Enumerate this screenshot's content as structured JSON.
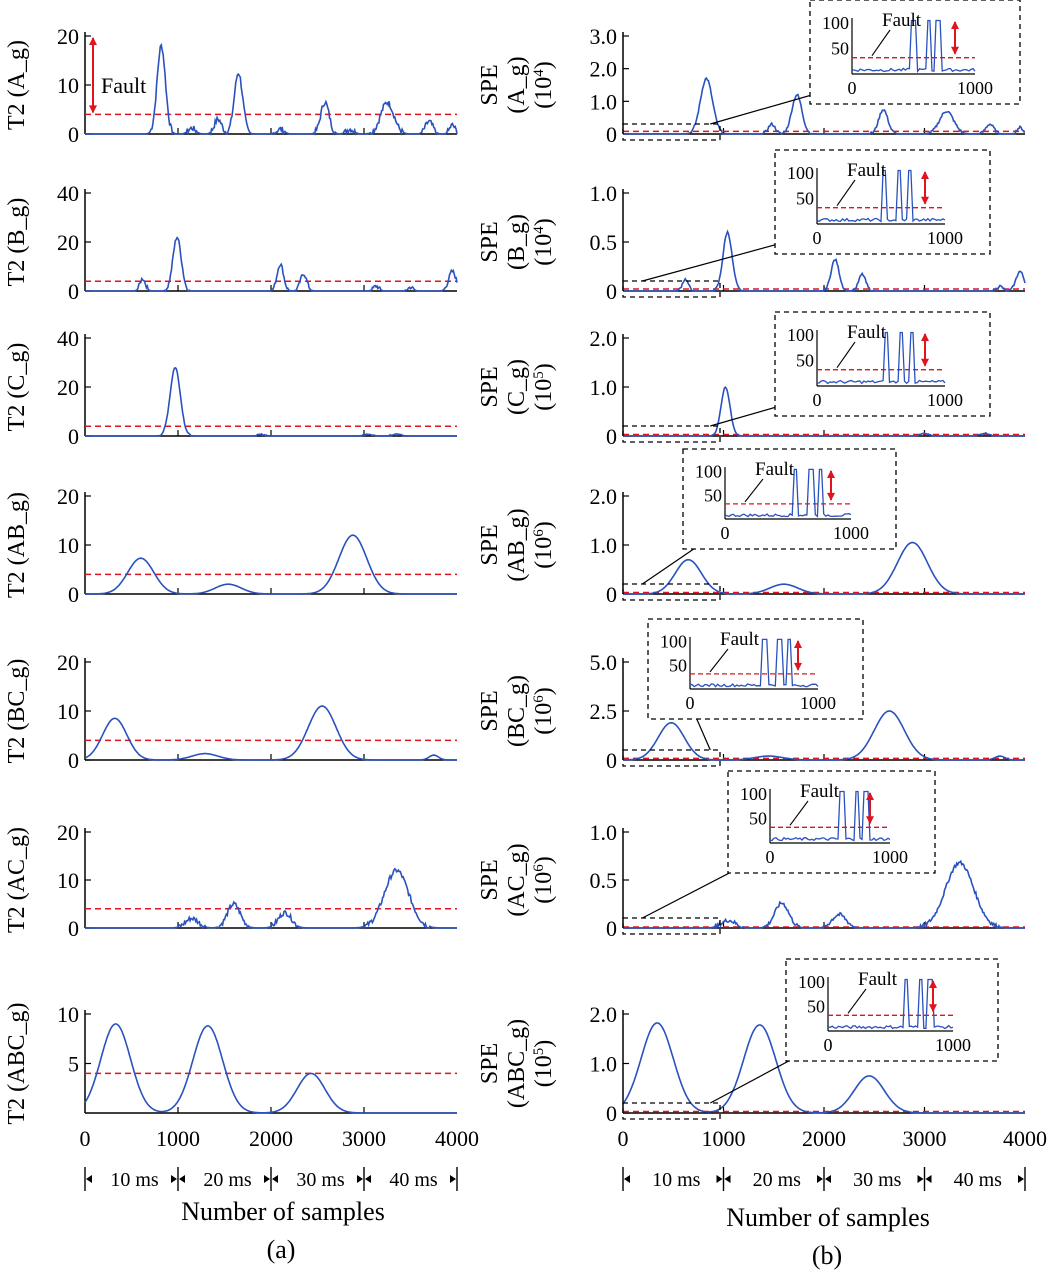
{
  "colors": {
    "signal": "#2a52be",
    "threshold": "#e0141e",
    "axis": "#000000",
    "arrow": "#e0141e"
  },
  "panel_captions": [
    "(a)",
    "(b)"
  ],
  "x_axis": {
    "title": "Number of samples",
    "ticks": [
      "0",
      "1000",
      "2000",
      "3000",
      "4000"
    ],
    "segments": [
      "10 ms",
      "20 ms",
      "30 ms",
      "40 ms"
    ],
    "range": [
      0,
      4000
    ]
  },
  "chart_data": [
    {
      "panel": "a",
      "type": "line",
      "ylabel": "T2 (A_g)",
      "ylim": [
        0,
        20
      ],
      "yticks": [
        "0",
        "10",
        "20"
      ],
      "threshold": 4,
      "annotation": "Fault",
      "peaks": [
        {
          "center": 820,
          "height": 18,
          "width": 45
        },
        {
          "center": 1150,
          "height": 1.2,
          "width": 40
        },
        {
          "center": 1430,
          "height": 3,
          "width": 40
        },
        {
          "center": 1650,
          "height": 12.5,
          "width": 45
        },
        {
          "center": 2100,
          "height": 1,
          "width": 40
        },
        {
          "center": 2580,
          "height": 6.5,
          "width": 45
        },
        {
          "center": 2850,
          "height": 1,
          "width": 40
        },
        {
          "center": 3250,
          "height": 6.5,
          "width": 70
        },
        {
          "center": 3700,
          "height": 2.5,
          "width": 40
        },
        {
          "center": 3950,
          "height": 1.8,
          "width": 30
        }
      ],
      "noise": 0.6
    },
    {
      "panel": "a",
      "type": "line",
      "ylabel": "T2 (B_g)",
      "ylim": [
        0,
        40
      ],
      "yticks": [
        "0",
        "20",
        "40"
      ],
      "threshold": 4,
      "peaks": [
        {
          "center": 620,
          "height": 5,
          "width": 30
        },
        {
          "center": 990,
          "height": 22,
          "width": 45
        },
        {
          "center": 2100,
          "height": 11,
          "width": 35
        },
        {
          "center": 2350,
          "height": 7,
          "width": 35
        },
        {
          "center": 3130,
          "height": 2,
          "width": 30
        },
        {
          "center": 3500,
          "height": 1.5,
          "width": 30
        },
        {
          "center": 3950,
          "height": 8,
          "width": 40
        }
      ],
      "noise": 0.8
    },
    {
      "panel": "a",
      "type": "line",
      "ylabel": "T2 (C_g)",
      "ylim": [
        0,
        40
      ],
      "yticks": [
        "0",
        "20",
        "40"
      ],
      "threshold": 4,
      "peaks": [
        {
          "center": 970,
          "height": 28,
          "width": 55
        },
        {
          "center": 1900,
          "height": 0.6,
          "width": 40
        },
        {
          "center": 3050,
          "height": 0.8,
          "width": 40
        },
        {
          "center": 3350,
          "height": 1,
          "width": 40
        }
      ],
      "noise": 0.3
    },
    {
      "panel": "a",
      "type": "line",
      "ylabel": "T2 (AB_g)",
      "ylim": [
        0,
        20
      ],
      "yticks": [
        "0",
        "10",
        "20"
      ],
      "threshold": 4,
      "peaks": [
        {
          "center": 600,
          "height": 7.3,
          "width": 140
        },
        {
          "center": 1540,
          "height": 2,
          "width": 140
        },
        {
          "center": 2880,
          "height": 12,
          "width": 150
        }
      ],
      "noise": 0
    },
    {
      "panel": "a",
      "type": "line",
      "ylabel": "T2 (BC_g)",
      "ylim": [
        0,
        20
      ],
      "yticks": [
        "0",
        "10",
        "20"
      ],
      "threshold": 4,
      "peaks": [
        {
          "center": 320,
          "height": 8.5,
          "width": 130
        },
        {
          "center": 1290,
          "height": 1.3,
          "width": 140
        },
        {
          "center": 2550,
          "height": 11,
          "width": 150
        },
        {
          "center": 3750,
          "height": 1,
          "width": 50
        }
      ],
      "noise": 0
    },
    {
      "panel": "a",
      "type": "line",
      "ylabel": "T2 (AC_g)",
      "ylim": [
        0,
        20
      ],
      "yticks": [
        "0",
        "10",
        "20"
      ],
      "threshold": 4,
      "peaks": [
        {
          "center": 1150,
          "height": 2,
          "width": 70
        },
        {
          "center": 1600,
          "height": 5,
          "width": 70
        },
        {
          "center": 2150,
          "height": 3.2,
          "width": 70
        },
        {
          "center": 3350,
          "height": 12,
          "width": 130
        }
      ],
      "noise": 0.5
    },
    {
      "panel": "a",
      "type": "line",
      "ylabel": "T2 (ABC_g)",
      "ylim": [
        0,
        10
      ],
      "yticks": [
        "5",
        "10"
      ],
      "threshold": 4,
      "peaks": [
        {
          "center": 330,
          "height": 9,
          "width": 160
        },
        {
          "center": 1320,
          "height": 8.8,
          "width": 160
        },
        {
          "center": 2430,
          "height": 4,
          "width": 150
        }
      ],
      "noise": 0
    },
    {
      "panel": "b",
      "type": "line",
      "ylabel": "SPE",
      "ylabel2": "(A_g)",
      "ylabel3": "(10",
      "exponent": "4",
      "ylim": [
        0,
        3.0
      ],
      "yticks": [
        "0",
        "1.0",
        "2.0",
        "3.0"
      ],
      "threshold": 0.08,
      "peaks": [
        {
          "center": 830,
          "height": 1.7,
          "width": 60
        },
        {
          "center": 1480,
          "height": 0.3,
          "width": 35
        },
        {
          "center": 1730,
          "height": 1.2,
          "width": 50
        },
        {
          "center": 2590,
          "height": 0.75,
          "width": 45
        },
        {
          "center": 3220,
          "height": 0.7,
          "width": 70
        },
        {
          "center": 3650,
          "height": 0.3,
          "width": 40
        },
        {
          "center": 3950,
          "height": 0.2,
          "width": 30
        }
      ],
      "noise": 0.04,
      "inset": {
        "xticks": [
          "0",
          "1000"
        ],
        "yticks": [
          "50",
          "100"
        ],
        "label": "Fault",
        "arrow": true
      }
    },
    {
      "panel": "b",
      "type": "line",
      "ylabel": "SPE",
      "ylabel2": "(B_g)",
      "ylabel3": "(10",
      "exponent": "4",
      "ylim": [
        0,
        1.0
      ],
      "yticks": [
        "0",
        "0.5",
        "1.0"
      ],
      "threshold": 0.02,
      "peaks": [
        {
          "center": 620,
          "height": 0.12,
          "width": 30
        },
        {
          "center": 1040,
          "height": 0.6,
          "width": 45
        },
        {
          "center": 2110,
          "height": 0.32,
          "width": 40
        },
        {
          "center": 2380,
          "height": 0.17,
          "width": 35
        },
        {
          "center": 3750,
          "height": 0.05,
          "width": 30
        },
        {
          "center": 3950,
          "height": 0.2,
          "width": 40
        }
      ],
      "noise": 0.012,
      "inset": {
        "xticks": [
          "0",
          "1000"
        ],
        "yticks": [
          "50",
          "100"
        ],
        "label": "Fault",
        "arrow": true
      }
    },
    {
      "panel": "b",
      "type": "line",
      "ylabel": "SPE",
      "ylabel2": "(C_g)",
      "ylabel3": "(10",
      "exponent": "5",
      "ylim": [
        0,
        2.0
      ],
      "yticks": [
        "0",
        "1.0",
        "2.0"
      ],
      "threshold": 0.03,
      "peaks": [
        {
          "center": 1020,
          "height": 1.0,
          "width": 45
        },
        {
          "center": 3000,
          "height": 0.05,
          "width": 40
        },
        {
          "center": 3600,
          "height": 0.06,
          "width": 40
        }
      ],
      "noise": 0.01,
      "inset": {
        "xticks": [
          "0",
          "1000"
        ],
        "yticks": [
          "50",
          "100"
        ],
        "label": "Fault",
        "arrow": true
      }
    },
    {
      "panel": "b",
      "type": "line",
      "ylabel": "SPE",
      "ylabel2": "(AB_g)",
      "ylabel3": "(10",
      "exponent": "6",
      "ylim": [
        0,
        2.0
      ],
      "yticks": [
        "0",
        "1.0",
        "2.0"
      ],
      "threshold": 0.03,
      "peaks": [
        {
          "center": 650,
          "height": 0.7,
          "width": 130
        },
        {
          "center": 1600,
          "height": 0.2,
          "width": 140
        },
        {
          "center": 2880,
          "height": 1.05,
          "width": 150
        }
      ],
      "noise": 0,
      "inset": {
        "xticks": [
          "0",
          "1000"
        ],
        "yticks": [
          "50",
          "100"
        ],
        "label": "Fault",
        "arrow": true
      }
    },
    {
      "panel": "b",
      "type": "line",
      "ylabel": "SPE",
      "ylabel2": "(BC_g)",
      "ylabel3": "(10",
      "exponent": "6",
      "ylim": [
        0,
        5.0
      ],
      "yticks": [
        "0",
        "2.5",
        "5.0"
      ],
      "threshold": 0.08,
      "peaks": [
        {
          "center": 480,
          "height": 1.9,
          "width": 130
        },
        {
          "center": 1450,
          "height": 0.2,
          "width": 140
        },
        {
          "center": 2650,
          "height": 2.5,
          "width": 150
        },
        {
          "center": 3750,
          "height": 0.2,
          "width": 50
        }
      ],
      "noise": 0,
      "inset": {
        "xticks": [
          "0",
          "1000"
        ],
        "yticks": [
          "50",
          "100"
        ],
        "label": "Fault",
        "arrow": true
      }
    },
    {
      "panel": "b",
      "type": "line",
      "ylabel": "SPE",
      "ylabel2": "(AC_g)",
      "ylabel3": "(10",
      "exponent": "6",
      "ylim": [
        0,
        1.0
      ],
      "yticks": [
        "0",
        "0.5",
        "1.0"
      ],
      "threshold": 0.01,
      "peaks": [
        {
          "center": 1050,
          "height": 0.08,
          "width": 70
        },
        {
          "center": 1580,
          "height": 0.26,
          "width": 70
        },
        {
          "center": 2150,
          "height": 0.14,
          "width": 70
        },
        {
          "center": 3350,
          "height": 0.68,
          "width": 140
        }
      ],
      "noise": 0.02,
      "inset": {
        "xticks": [
          "0",
          "1000"
        ],
        "yticks": [
          "50",
          "100"
        ],
        "label": "Fault",
        "arrow": true
      }
    },
    {
      "panel": "b",
      "type": "line",
      "ylabel": "SPE",
      "ylabel2": "(ABC_g)",
      "ylabel3": "(10",
      "exponent": "5",
      "ylim": [
        0,
        2.0
      ],
      "yticks": [
        "0",
        "1.0",
        "2.0"
      ],
      "threshold": 0.03,
      "peaks": [
        {
          "center": 340,
          "height": 1.82,
          "width": 160
        },
        {
          "center": 1360,
          "height": 1.78,
          "width": 160
        },
        {
          "center": 2450,
          "height": 0.75,
          "width": 150
        }
      ],
      "noise": 0,
      "inset": {
        "xticks": [
          "0",
          "1000"
        ],
        "yticks": [
          "50",
          "100"
        ],
        "label": "Fault",
        "arrow": true
      }
    }
  ]
}
